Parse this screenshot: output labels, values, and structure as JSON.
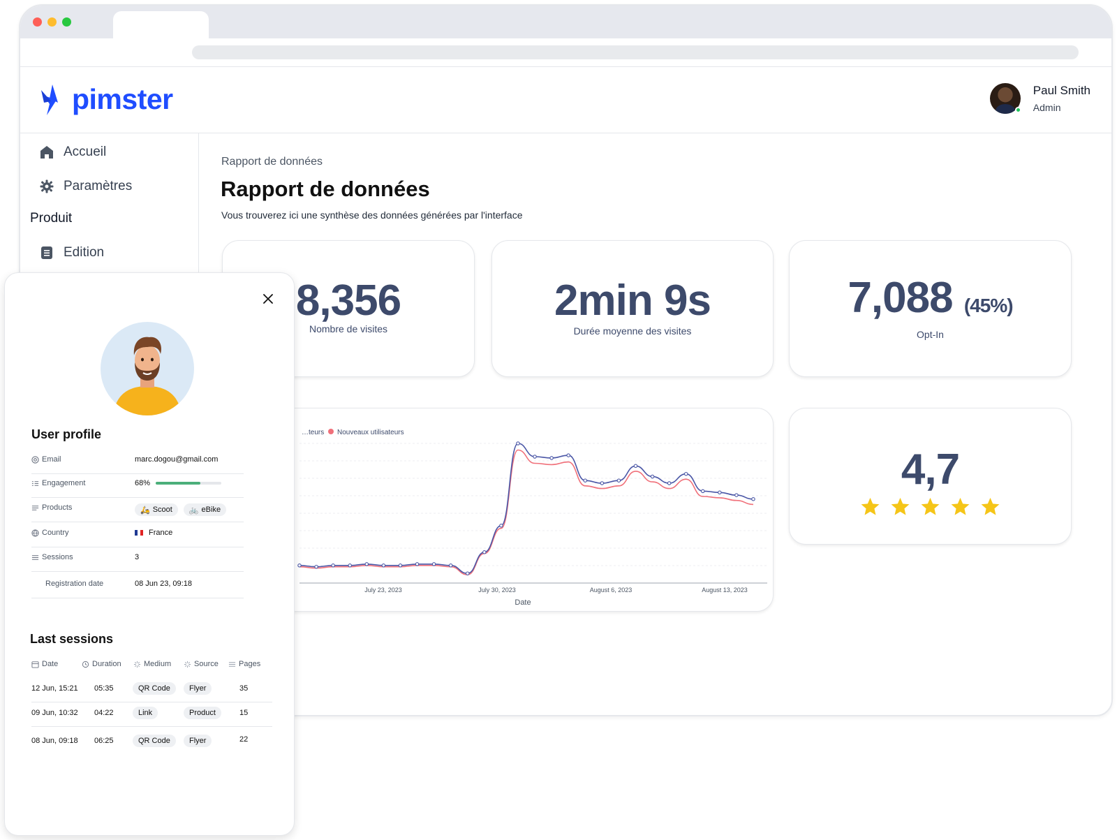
{
  "app": {
    "logo_text": "pimster",
    "brand_color": "#1f4dff"
  },
  "user": {
    "name": "Paul Smith",
    "role": "Admin",
    "status_color": "#22c55e"
  },
  "sidebar": {
    "items": [
      {
        "label": "Accueil",
        "icon": "home-icon"
      },
      {
        "label": "Paramètres",
        "icon": "gear-icon"
      }
    ],
    "section_label": "Produit",
    "section_items": [
      {
        "label": "Edition",
        "icon": "document-icon"
      }
    ]
  },
  "main": {
    "breadcrumb": "Rapport de données",
    "title": "Rapport de données",
    "subtitle": "Vous trouverez ici une synthèse des données générées par l'interface"
  },
  "stats": {
    "visits": {
      "value": "8,356",
      "label": "Nombre de visites"
    },
    "duration": {
      "value": "2min 9s",
      "label": "Durée moyenne des visites"
    },
    "optin": {
      "value": "7,088",
      "pct": "(45%)",
      "label": "Opt-In"
    },
    "rating": {
      "value": "4,7",
      "stars": 5,
      "star_color": "#f5c518"
    }
  },
  "chart_data": {
    "type": "line",
    "xlabel": "Date",
    "x_ticks": [
      "July 23, 2023",
      "July 30, 2023",
      "August 6, 2023",
      "August 13, 2023"
    ],
    "legend": [
      "…teurs",
      "Nouveaux utilisateurs"
    ],
    "legend_placement": "top-left",
    "grid": true,
    "series": [
      {
        "name": "…teurs",
        "color": "#4a56a6",
        "values": [
          8,
          7,
          8,
          8,
          9,
          8,
          8,
          9,
          9,
          8,
          2,
          18,
          38,
          100,
          90,
          89,
          91,
          72,
          70,
          72,
          83,
          75,
          70,
          77,
          64,
          63,
          61,
          58
        ]
      },
      {
        "name": "Nouveaux utilisateurs",
        "color": "#f0707a",
        "values": [
          7,
          6,
          7,
          7,
          8,
          7,
          7,
          8,
          8,
          7,
          1,
          17,
          36,
          95,
          85,
          84,
          86,
          68,
          66,
          68,
          79,
          71,
          66,
          73,
          60,
          59,
          57,
          54
        ]
      }
    ],
    "ylim": [
      0,
      100
    ]
  },
  "profile": {
    "title": "User profile",
    "fields": {
      "email_key": "Email",
      "email": "marc.dogou@gmail.com",
      "engagement_key": "Engagement",
      "engagement": "68%",
      "engagement_fraction": 0.68,
      "products_key": "Products",
      "product_1": "Scoot",
      "product_2": "eBike",
      "country_key": "Country",
      "country": "France",
      "sessions_key": "Sessions",
      "sessions": "3",
      "registration_key": "Registration date",
      "registration": "08 Jun 23, 09:18"
    }
  },
  "sessions": {
    "title": "Last sessions",
    "headers": [
      "Date",
      "Duration",
      "Medium",
      "Source",
      "Pages"
    ],
    "rows": [
      {
        "date": "12 Jun, 15:21",
        "duration": "05:35",
        "medium": "QR Code",
        "source": "Flyer",
        "pages": "35"
      },
      {
        "date": "09 Jun, 10:32",
        "duration": "04:22",
        "medium": "Link",
        "source": "Product",
        "pages": "15"
      },
      {
        "date": "08 Jun, 09:18",
        "duration": "06:25",
        "medium": "QR Code",
        "source": "Flyer",
        "pages": "22"
      }
    ]
  }
}
